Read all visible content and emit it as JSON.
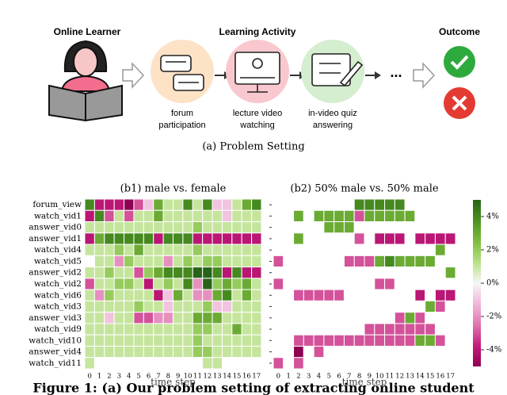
{
  "diagram": {
    "learner_title": "Online Learner",
    "activity_title": "Learning Activity",
    "outcome_title": "Outcome",
    "activities": [
      {
        "lines": [
          "forum",
          "participation"
        ]
      },
      {
        "lines": [
          "lecture video",
          "watching"
        ]
      },
      {
        "lines": [
          "in-video quiz",
          "answering"
        ]
      }
    ],
    "ellipsis": "...",
    "caption": "(a) Problem Setting"
  },
  "chart_data": [
    {
      "type": "heatmap",
      "title": "(b1) male vs. female",
      "xlabel": "time step",
      "rows": [
        "forum_view",
        "watch_vid1",
        "answer_vid0",
        "answer_vid1",
        "watch_vid4",
        "watch_vid5",
        "answer_vid2",
        "watch_vid2",
        "watch_vid6",
        "watch_vid3",
        "answer_vid3",
        "watch_vid9",
        "watch_vid10",
        "answer_vid4",
        "watch_vid11"
      ],
      "columns": [
        0,
        1,
        2,
        3,
        4,
        5,
        6,
        7,
        8,
        9,
        10,
        11,
        12,
        13,
        14,
        15,
        16,
        17
      ],
      "values": [
        [
          4,
          -4,
          -4,
          -4,
          -5,
          -3,
          -1,
          3,
          1,
          1,
          4,
          1,
          4,
          -1,
          -1,
          1,
          3,
          4
        ],
        [
          -4,
          4,
          -3,
          1,
          -3,
          1,
          1,
          3,
          1,
          1,
          1,
          1,
          1,
          1,
          -1,
          1,
          1,
          1
        ],
        [
          1,
          1,
          1,
          1,
          1,
          1,
          1,
          1,
          1,
          1,
          1,
          2,
          1,
          1,
          1,
          1,
          1,
          1
        ],
        [
          -4,
          3,
          4,
          4,
          4,
          4,
          4,
          -4,
          4,
          4,
          4,
          -4,
          -4,
          -4,
          -4,
          -4,
          -4,
          -4
        ],
        [
          1,
          1,
          1,
          2,
          1,
          3,
          1,
          1,
          1,
          1,
          1,
          2,
          1,
          1,
          1,
          1,
          1,
          1
        ],
        [
          0,
          1,
          1,
          -2,
          2,
          1,
          1,
          1,
          -2,
          1,
          2,
          1,
          2,
          2,
          1,
          1,
          1,
          1
        ],
        [
          1,
          1,
          2,
          1,
          1,
          -3,
          2,
          3,
          4,
          4,
          4,
          5,
          5,
          4,
          -4,
          4,
          -4,
          -4
        ],
        [
          -3,
          1,
          1,
          2,
          2,
          1,
          -4,
          1,
          2,
          1,
          4,
          -2,
          5,
          2,
          3,
          2,
          3,
          1
        ],
        [
          1,
          -2,
          2,
          1,
          1,
          1,
          1,
          -4,
          -1,
          3,
          1,
          -2,
          -2,
          3,
          4,
          1,
          3,
          1
        ],
        [
          1,
          1,
          1,
          1,
          1,
          2,
          1,
          1,
          -1,
          1,
          1,
          1,
          2,
          -1,
          -1,
          1,
          1,
          1
        ],
        [
          1,
          1,
          -1,
          1,
          1,
          -3,
          -3,
          -2,
          -2,
          1,
          1,
          3,
          3,
          3,
          1,
          1,
          1,
          1
        ],
        [
          1,
          1,
          1,
          1,
          1,
          1,
          1,
          1,
          1,
          1,
          1,
          2,
          2,
          1,
          1,
          3,
          1,
          1
        ],
        [
          1,
          1,
          1,
          1,
          1,
          1,
          1,
          1,
          1,
          1,
          1,
          2,
          1,
          1,
          1,
          1,
          1,
          1
        ],
        [
          1,
          1,
          1,
          1,
          1,
          1,
          1,
          1,
          1,
          1,
          1,
          2,
          2,
          1,
          1,
          1,
          1,
          1
        ],
        [
          1,
          0,
          0,
          0,
          0,
          0,
          0,
          0,
          0,
          0,
          0,
          0,
          1,
          1,
          0,
          0,
          0,
          0
        ]
      ]
    },
    {
      "type": "heatmap",
      "title": "(b2) 50% male vs. 50% male",
      "xlabel": "time step",
      "columns": [
        0,
        1,
        2,
        3,
        4,
        5,
        6,
        7,
        8,
        9,
        10,
        11,
        12,
        13,
        14,
        15,
        16,
        17
      ],
      "values": [
        [
          0,
          0,
          0,
          0,
          0,
          0,
          0,
          0,
          4,
          4,
          4,
          4,
          4,
          0,
          0,
          0,
          0,
          0
        ],
        [
          0,
          0,
          3,
          0,
          3,
          3,
          3,
          3,
          -3,
          3,
          3,
          3,
          3,
          3,
          0,
          0,
          0,
          0
        ],
        [
          0,
          0,
          0,
          0,
          0,
          3,
          3,
          3,
          0,
          0,
          0,
          0,
          0,
          0,
          0,
          0,
          0,
          0
        ],
        [
          0,
          0,
          3,
          0,
          0,
          0,
          0,
          0,
          -3,
          0,
          -4,
          -4,
          -4,
          0,
          -4,
          -4,
          -4,
          -4
        ],
        [
          0,
          0,
          0,
          0,
          0,
          0,
          0,
          0,
          0,
          0,
          0,
          0,
          0,
          0,
          0,
          0,
          3,
          0
        ],
        [
          -3,
          0,
          0,
          0,
          0,
          0,
          0,
          -3,
          -3,
          -3,
          3,
          4,
          3,
          3,
          3,
          3,
          0,
          0
        ],
        [
          0,
          0,
          0,
          0,
          0,
          0,
          0,
          0,
          0,
          0,
          0,
          0,
          0,
          0,
          0,
          0,
          0,
          3
        ],
        [
          -3,
          0,
          0,
          0,
          0,
          0,
          0,
          0,
          0,
          0,
          -3,
          -3,
          0,
          0,
          0,
          0,
          0,
          0
        ],
        [
          0,
          0,
          -3,
          -3,
          -3,
          -3,
          -3,
          0,
          0,
          0,
          0,
          0,
          0,
          0,
          -4,
          0,
          -4,
          -4
        ],
        [
          0,
          0,
          0,
          0,
          0,
          0,
          0,
          0,
          0,
          0,
          0,
          0,
          0,
          0,
          0,
          3,
          -3,
          0
        ],
        [
          0,
          0,
          0,
          0,
          0,
          0,
          0,
          0,
          0,
          0,
          0,
          0,
          -3,
          3,
          -3,
          0,
          0,
          0
        ],
        [
          0,
          0,
          0,
          0,
          0,
          0,
          0,
          0,
          0,
          -3,
          -3,
          -3,
          -3,
          -3,
          -3,
          -3,
          0,
          0
        ],
        [
          0,
          0,
          -3,
          -3,
          -3,
          -3,
          -3,
          -3,
          -3,
          -3,
          -3,
          -3,
          -3,
          -3,
          3,
          3,
          -3,
          0
        ],
        [
          0,
          0,
          -5,
          0,
          -3,
          0,
          0,
          0,
          0,
          0,
          0,
          0,
          0,
          0,
          0,
          0,
          0,
          0
        ],
        [
          -3,
          0,
          -3,
          0,
          0,
          0,
          0,
          0,
          0,
          0,
          0,
          0,
          0,
          0,
          0,
          0,
          0,
          0
        ]
      ]
    }
  ],
  "colorbar": {
    "zlim": [
      -5,
      5
    ],
    "zticks": [
      {
        "value": 4,
        "label": "4%"
      },
      {
        "value": 2,
        "label": "2%"
      },
      {
        "value": 0,
        "label": "0%"
      },
      {
        "value": -2,
        "label": "-2%"
      },
      {
        "value": -4,
        "label": "-4%"
      }
    ]
  },
  "caption": "Figure 1: (a) Our problem setting of extracting online student"
}
